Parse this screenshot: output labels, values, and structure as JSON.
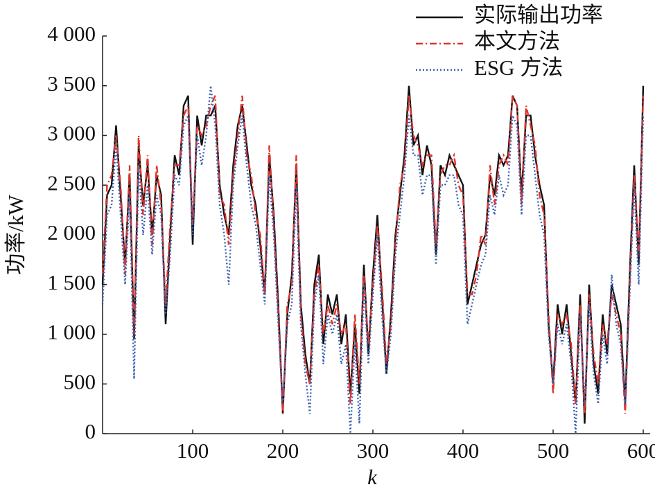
{
  "chart_data": {
    "type": "line",
    "x_label": "k",
    "y_label": "功率/kW",
    "x": [
      0,
      5,
      10,
      15,
      20,
      25,
      30,
      35,
      40,
      45,
      50,
      55,
      60,
      65,
      70,
      75,
      80,
      85,
      90,
      95,
      100,
      105,
      110,
      115,
      120,
      125,
      130,
      135,
      140,
      145,
      150,
      155,
      160,
      165,
      170,
      175,
      180,
      185,
      190,
      195,
      200,
      205,
      210,
      215,
      220,
      225,
      230,
      235,
      240,
      245,
      250,
      255,
      260,
      265,
      270,
      275,
      280,
      285,
      290,
      295,
      300,
      305,
      310,
      315,
      320,
      325,
      330,
      335,
      340,
      345,
      350,
      355,
      360,
      365,
      370,
      375,
      380,
      385,
      390,
      395,
      400,
      405,
      410,
      415,
      420,
      425,
      430,
      435,
      440,
      445,
      450,
      455,
      460,
      465,
      470,
      475,
      480,
      485,
      490,
      495,
      500,
      505,
      510,
      515,
      520,
      525,
      530,
      535,
      540,
      545,
      550,
      555,
      560,
      565,
      570,
      575,
      580,
      585,
      590,
      595,
      600
    ],
    "series": [
      {
        "name": "实际输出功率",
        "color": "#111111",
        "dash": "solid",
        "values": [
          1500,
          2400,
          2500,
          3100,
          2400,
          1700,
          2600,
          950,
          2900,
          2300,
          2700,
          2000,
          2600,
          2400,
          1100,
          2000,
          2800,
          2600,
          3300,
          3400,
          1900,
          3200,
          2900,
          3200,
          3200,
          3300,
          2500,
          2200,
          2000,
          2700,
          3100,
          3300,
          2900,
          2500,
          2300,
          1900,
          1400,
          2800,
          2200,
          1300,
          200,
          1200,
          1600,
          2700,
          1300,
          800,
          500,
          1500,
          1800,
          900,
          1400,
          1200,
          1400,
          900,
          1200,
          400,
          1100,
          400,
          1700,
          800,
          1600,
          2200,
          1400,
          600,
          1200,
          2000,
          2400,
          2800,
          3500,
          2900,
          3000,
          2600,
          2900,
          2700,
          1800,
          2700,
          2600,
          2800,
          2700,
          2600,
          2500,
          1300,
          1500,
          1700,
          1900,
          2000,
          2600,
          2400,
          2800,
          2700,
          2800,
          3400,
          3300,
          2400,
          3200,
          3200,
          2800,
          2500,
          2300,
          1100,
          500,
          1300,
          1000,
          1300,
          800,
          300,
          1400,
          100,
          1500,
          700,
          400,
          1200,
          800,
          1500,
          1300,
          1100,
          300,
          1600,
          2700,
          1700,
          3500
        ]
      },
      {
        "name": "本文方法",
        "color": "#e0342c",
        "dash": "dashdot",
        "values": [
          1600,
          2500,
          2600,
          3000,
          2500,
          1600,
          2700,
          1000,
          3000,
          2200,
          2800,
          1900,
          2700,
          2300,
          1300,
          2100,
          2700,
          2700,
          3200,
          3300,
          2100,
          3100,
          3000,
          3100,
          3300,
          3400,
          2400,
          2300,
          1900,
          2600,
          3000,
          3400,
          2800,
          2600,
          2200,
          2000,
          1400,
          2900,
          2100,
          1200,
          200,
          1300,
          1500,
          2800,
          1200,
          700,
          500,
          1400,
          1700,
          1000,
          1300,
          1100,
          1300,
          1000,
          1100,
          300,
          1200,
          500,
          1600,
          900,
          1500,
          2100,
          1500,
          700,
          1100,
          1900,
          2500,
          2700,
          3400,
          3000,
          2900,
          2700,
          2800,
          2800,
          1900,
          2600,
          2700,
          2700,
          2800,
          2500,
          2400,
          1400,
          1400,
          1600,
          2000,
          1900,
          2700,
          2300,
          2700,
          2800,
          2700,
          3400,
          3300,
          2300,
          3300,
          3100,
          2900,
          2400,
          2200,
          1200,
          400,
          1200,
          1100,
          1200,
          900,
          300,
          1300,
          200,
          1400,
          800,
          500,
          1100,
          900,
          1400,
          1200,
          1000,
          200,
          1500,
          2600,
          1800,
          3400
        ]
      },
      {
        "name": "ESG 方法",
        "color": "#3a5fb0",
        "dash": "dotted",
        "values": [
          1300,
          2200,
          2300,
          2900,
          2200,
          1500,
          2400,
          550,
          2700,
          2000,
          2500,
          1800,
          2400,
          2200,
          1200,
          1800,
          2600,
          2500,
          3100,
          3200,
          2000,
          3000,
          2700,
          3000,
          3500,
          3100,
          2300,
          2000,
          1500,
          2500,
          2900,
          3200,
          2700,
          2300,
          2100,
          1700,
          1300,
          2600,
          2000,
          1100,
          300,
          1100,
          1300,
          2500,
          1100,
          600,
          200,
          1300,
          1600,
          700,
          1200,
          1000,
          1200,
          700,
          900,
          0,
          900,
          100,
          1500,
          700,
          1400,
          2000,
          1200,
          600,
          1000,
          1800,
          2200,
          2600,
          3200,
          2800,
          2800,
          2400,
          2600,
          2600,
          1700,
          2500,
          2500,
          2600,
          2600,
          2300,
          2200,
          1100,
          1300,
          1500,
          1700,
          1800,
          2400,
          2200,
          2600,
          2400,
          2500,
          3200,
          3100,
          2200,
          3000,
          3000,
          2600,
          2200,
          2000,
          1000,
          500,
          1100,
          900,
          1100,
          700,
          0,
          1200,
          300,
          1300,
          600,
          300,
          1000,
          700,
          1600,
          1100,
          900,
          300,
          1400,
          2500,
          1500,
          3200
        ]
      }
    ],
    "xlim": [
      0,
      600
    ],
    "xticks": [
      100,
      200,
      300,
      400,
      500,
      600
    ],
    "ylim": [
      0,
      4000
    ],
    "yticks": [
      0,
      500,
      {
        "value": 1000,
        "label": "1 000"
      },
      {
        "value": 1500,
        "label": "1 500"
      },
      {
        "value": 2000,
        "label": "2 000"
      },
      {
        "value": 2500,
        "label": "2 500"
      },
      {
        "value": 3000,
        "label": "3 000"
      },
      {
        "value": 3500,
        "label": "3 500"
      },
      {
        "value": 4000,
        "label": "4 000"
      }
    ],
    "legend": "upper right",
    "grid": false
  }
}
